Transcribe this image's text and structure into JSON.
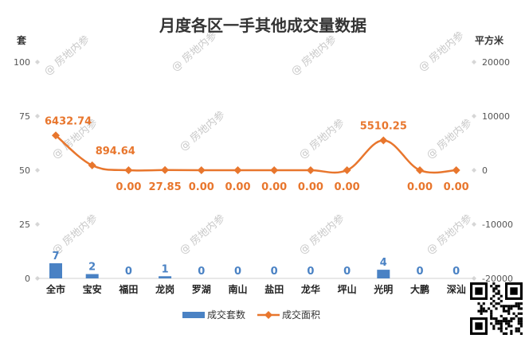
{
  "chart_data": {
    "type": "bar+line",
    "title": "月度各区一手其他成交量数据",
    "categories": [
      "全市",
      "宝安",
      "福田",
      "龙岗",
      "罗湖",
      "南山",
      "盐田",
      "龙华",
      "坪山",
      "光明",
      "大鹏",
      "深汕"
    ],
    "left_axis": {
      "unit": "套",
      "ylim": [
        0,
        100
      ],
      "ticks": [
        "100",
        "75",
        "50",
        "25",
        "0"
      ]
    },
    "right_axis": {
      "unit": "平方米",
      "ylim": [
        -20000,
        20000
      ],
      "ticks": [
        "20000",
        "10000",
        "0",
        "-10000",
        "-20000"
      ]
    },
    "series": [
      {
        "name": "成交套数",
        "type": "bar",
        "axis": "left",
        "color": "#4a82c4",
        "values": [
          7,
          2,
          0,
          1,
          0,
          0,
          0,
          0,
          0,
          4,
          0,
          0
        ],
        "labels": [
          "7",
          "2",
          "0",
          "1",
          "0",
          "0",
          "0",
          "0",
          "0",
          "4",
          "0",
          "0"
        ]
      },
      {
        "name": "成交面积",
        "type": "line",
        "axis": "right",
        "color": "#e8762d",
        "values": [
          6432.74,
          894.64,
          0,
          27.85,
          0,
          0,
          0,
          0,
          0,
          5510.25,
          0,
          0
        ],
        "labels": [
          "6432.74",
          "894.64",
          "0.00",
          "27.85",
          "0.00",
          "0.00",
          "0.00",
          "0.00",
          "0.00",
          "5510.25",
          "0.00",
          "0.00"
        ]
      }
    ],
    "grid": false,
    "legend_position": "bottom"
  },
  "watermark": "@ 房地内参",
  "icons": [
    "qr-code-icon"
  ]
}
